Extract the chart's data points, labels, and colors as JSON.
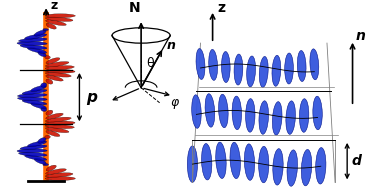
{
  "bg_color": "#ffffff",
  "left_panel": {
    "z_label": "z",
    "p_label": "p",
    "orange_color": "#FF6600",
    "red_color": "#CC1100",
    "blue_color": "#0000BB",
    "helix_turns": 3
  },
  "middle_panel": {
    "N_label": "N",
    "n_label": "n",
    "theta_label": "θ",
    "phi_label": "φ"
  },
  "right_panel": {
    "z_label": "z",
    "n_label": "n",
    "d_label": "d",
    "ellipse_facecolor": "#3355DD",
    "ellipse_edgecolor": "#001188",
    "n_rows": 3,
    "n_cols": 10
  }
}
